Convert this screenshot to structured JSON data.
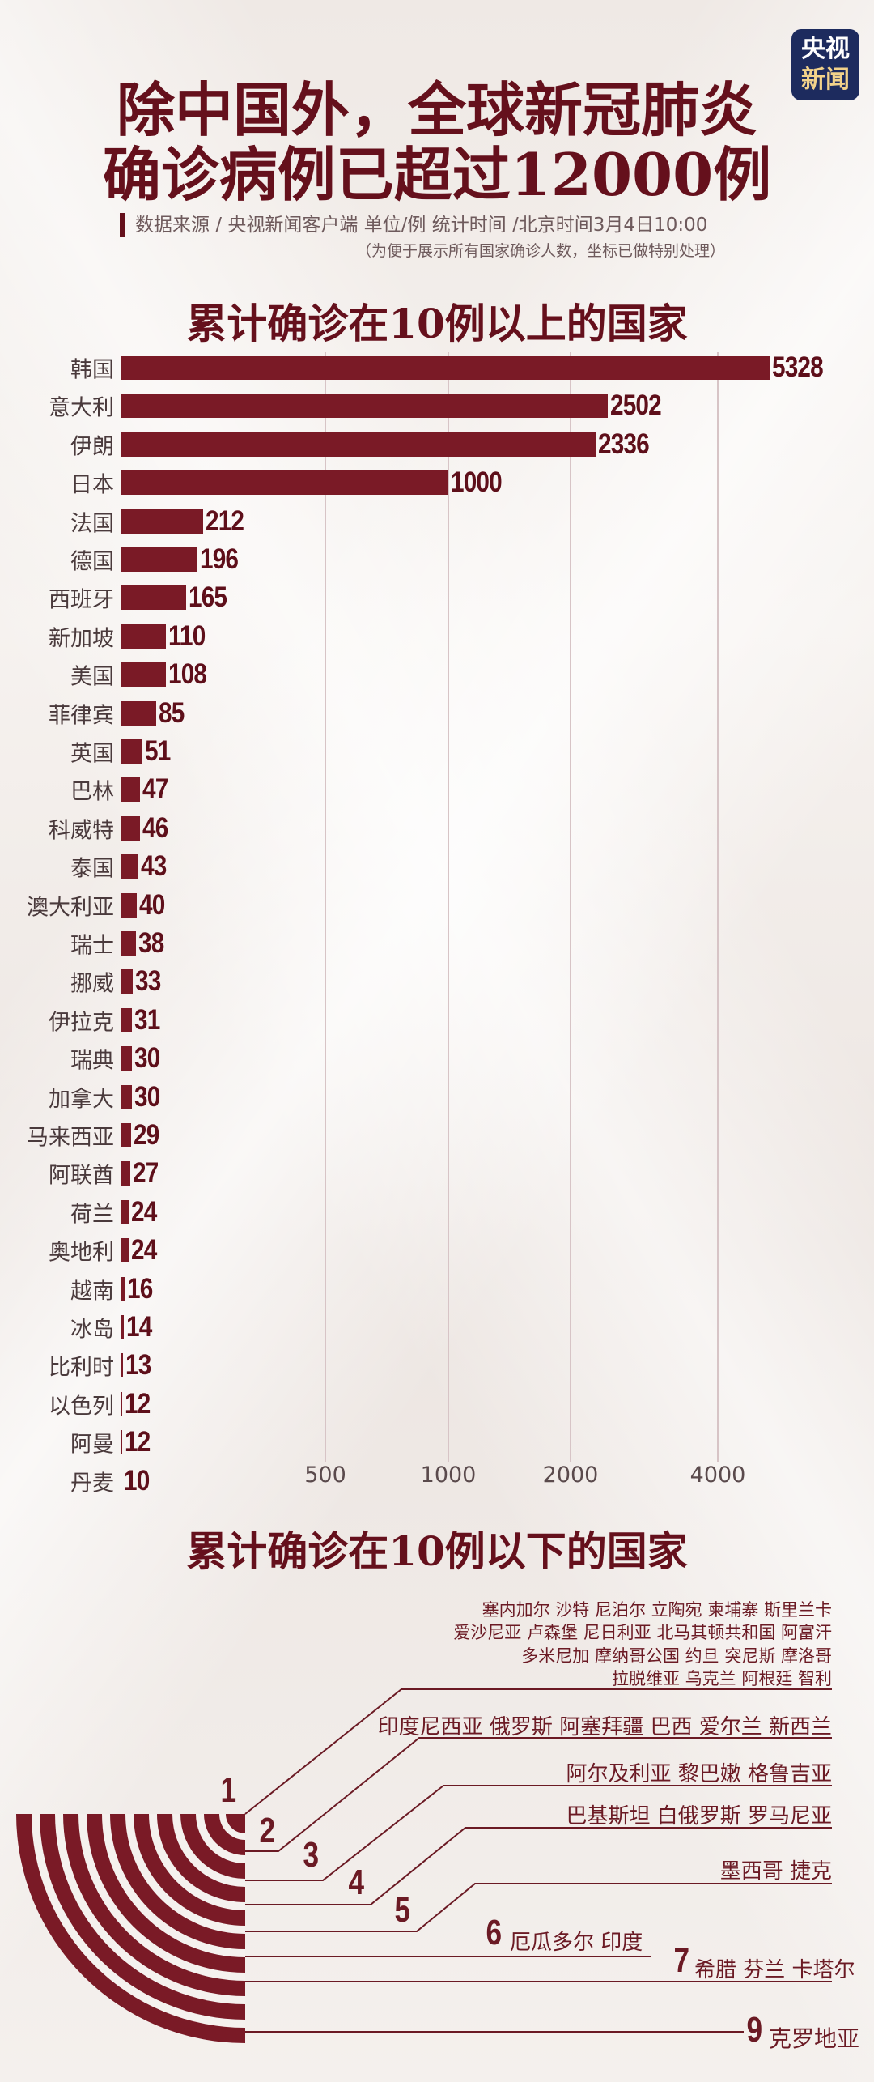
{
  "logo": {
    "line1": "央视",
    "line2": "新闻"
  },
  "title": {
    "line1": "除中国外，全球新冠肺炎",
    "line2": "确诊病例已超过12000例"
  },
  "source": "数据来源 / 央视新闻客户端  单位/例   统计时间 /北京时间3月4日10:00",
  "note": "（为便于展示所有国家确诊人数，坐标已做特别处理）",
  "chart_data": {
    "type": "bar",
    "orientation": "horizontal",
    "title": "累计确诊在10例以上的国家",
    "x_scale": "custom (non-linear)",
    "x_ticks": [
      "500",
      "1000",
      "2000",
      "4000"
    ],
    "grid": true,
    "bar_color": "#7a1a26",
    "categories": [
      "韩国",
      "意大利",
      "伊朗",
      "日本",
      "法国",
      "德国",
      "西班牙",
      "新加坡",
      "美国",
      "菲律宾",
      "英国",
      "巴林",
      "科威特",
      "泰国",
      "澳大利亚",
      "瑞士",
      "挪威",
      "伊拉克",
      "瑞典",
      "加拿大",
      "马来西亚",
      "阿联酋",
      "荷兰",
      "奥地利",
      "越南",
      "冰岛",
      "比利时",
      "以色列",
      "阿曼",
      "丹麦"
    ],
    "values": [
      5328,
      2502,
      2336,
      1000,
      212,
      196,
      165,
      110,
      108,
      85,
      51,
      47,
      46,
      43,
      40,
      38,
      33,
      31,
      30,
      30,
      29,
      27,
      24,
      24,
      16,
      14,
      13,
      12,
      12,
      10
    ]
  },
  "below": {
    "title": "累计确诊在10例以下的国家",
    "levels": [
      {
        "n": "1",
        "rows": [
          "塞内加尔  沙特  尼泊尔  立陶宛  柬埔寨  斯里兰卡",
          "爱沙尼亚  卢森堡  尼日利亚  北马其顿共和国  阿富汗",
          "多米尼加  摩纳哥公国  约旦  突尼斯  摩洛哥",
          "拉脱维亚  乌克兰  阿根廷  智利"
        ]
      },
      {
        "n": "2",
        "rows": [
          "印度尼西亚  俄罗斯  阿塞拜疆  巴西  爱尔兰  新西兰"
        ]
      },
      {
        "n": "3",
        "rows": [
          "阿尔及利亚 黎巴嫩  格鲁吉亚"
        ]
      },
      {
        "n": "4",
        "rows": [
          "巴基斯坦  白俄罗斯  罗马尼亚"
        ]
      },
      {
        "n": "5",
        "rows": [
          "墨西哥  捷克"
        ]
      },
      {
        "n": "6",
        "rows": [
          "厄瓜多尔  印度"
        ]
      },
      {
        "n": "7",
        "rows": [
          "希腊   芬兰  卡塔尔"
        ]
      },
      {
        "n": "9",
        "rows": [
          "克罗地亚"
        ]
      }
    ]
  }
}
